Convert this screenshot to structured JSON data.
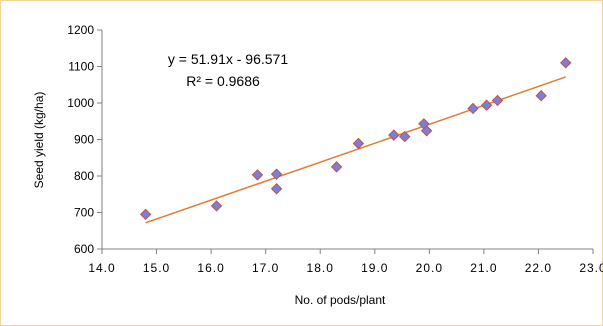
{
  "chart_data": {
    "type": "scatter",
    "xlabel": "No. of pods/plant",
    "ylabel": "Seed yield (kg/ha)",
    "xlim": [
      14.0,
      23.0
    ],
    "ylim": [
      600,
      1200
    ],
    "x_ticks": [
      "14.0",
      "15.0",
      "16.0",
      "17.0",
      "18.0",
      "19.0",
      "20.0",
      "21.0",
      "22.0",
      "23.0"
    ],
    "y_ticks": [
      "600",
      "700",
      "800",
      "900",
      "1000",
      "1100",
      "1200"
    ],
    "grid": false,
    "colors": {
      "marker": "#7b7fd6",
      "marker_edge": "#c0504d",
      "trendline": "#e07b30",
      "frame": "#f5d49a"
    },
    "points": [
      {
        "x": 14.8,
        "y": 695
      },
      {
        "x": 16.1,
        "y": 718
      },
      {
        "x": 16.85,
        "y": 803
      },
      {
        "x": 17.2,
        "y": 805
      },
      {
        "x": 17.2,
        "y": 765
      },
      {
        "x": 18.3,
        "y": 825
      },
      {
        "x": 18.7,
        "y": 889
      },
      {
        "x": 19.35,
        "y": 912
      },
      {
        "x": 19.55,
        "y": 908
      },
      {
        "x": 19.9,
        "y": 943
      },
      {
        "x": 19.95,
        "y": 924
      },
      {
        "x": 20.8,
        "y": 985
      },
      {
        "x": 21.05,
        "y": 994
      },
      {
        "x": 21.25,
        "y": 1007
      },
      {
        "x": 22.05,
        "y": 1020
      },
      {
        "x": 22.5,
        "y": 1110
      }
    ],
    "trendline": {
      "slope": 51.91,
      "intercept": -96.571,
      "x_start": 14.8,
      "x_end": 22.5
    },
    "annotations": {
      "equation": "y = 51.91x - 96.571",
      "r2": "R² = 0.9686"
    }
  }
}
